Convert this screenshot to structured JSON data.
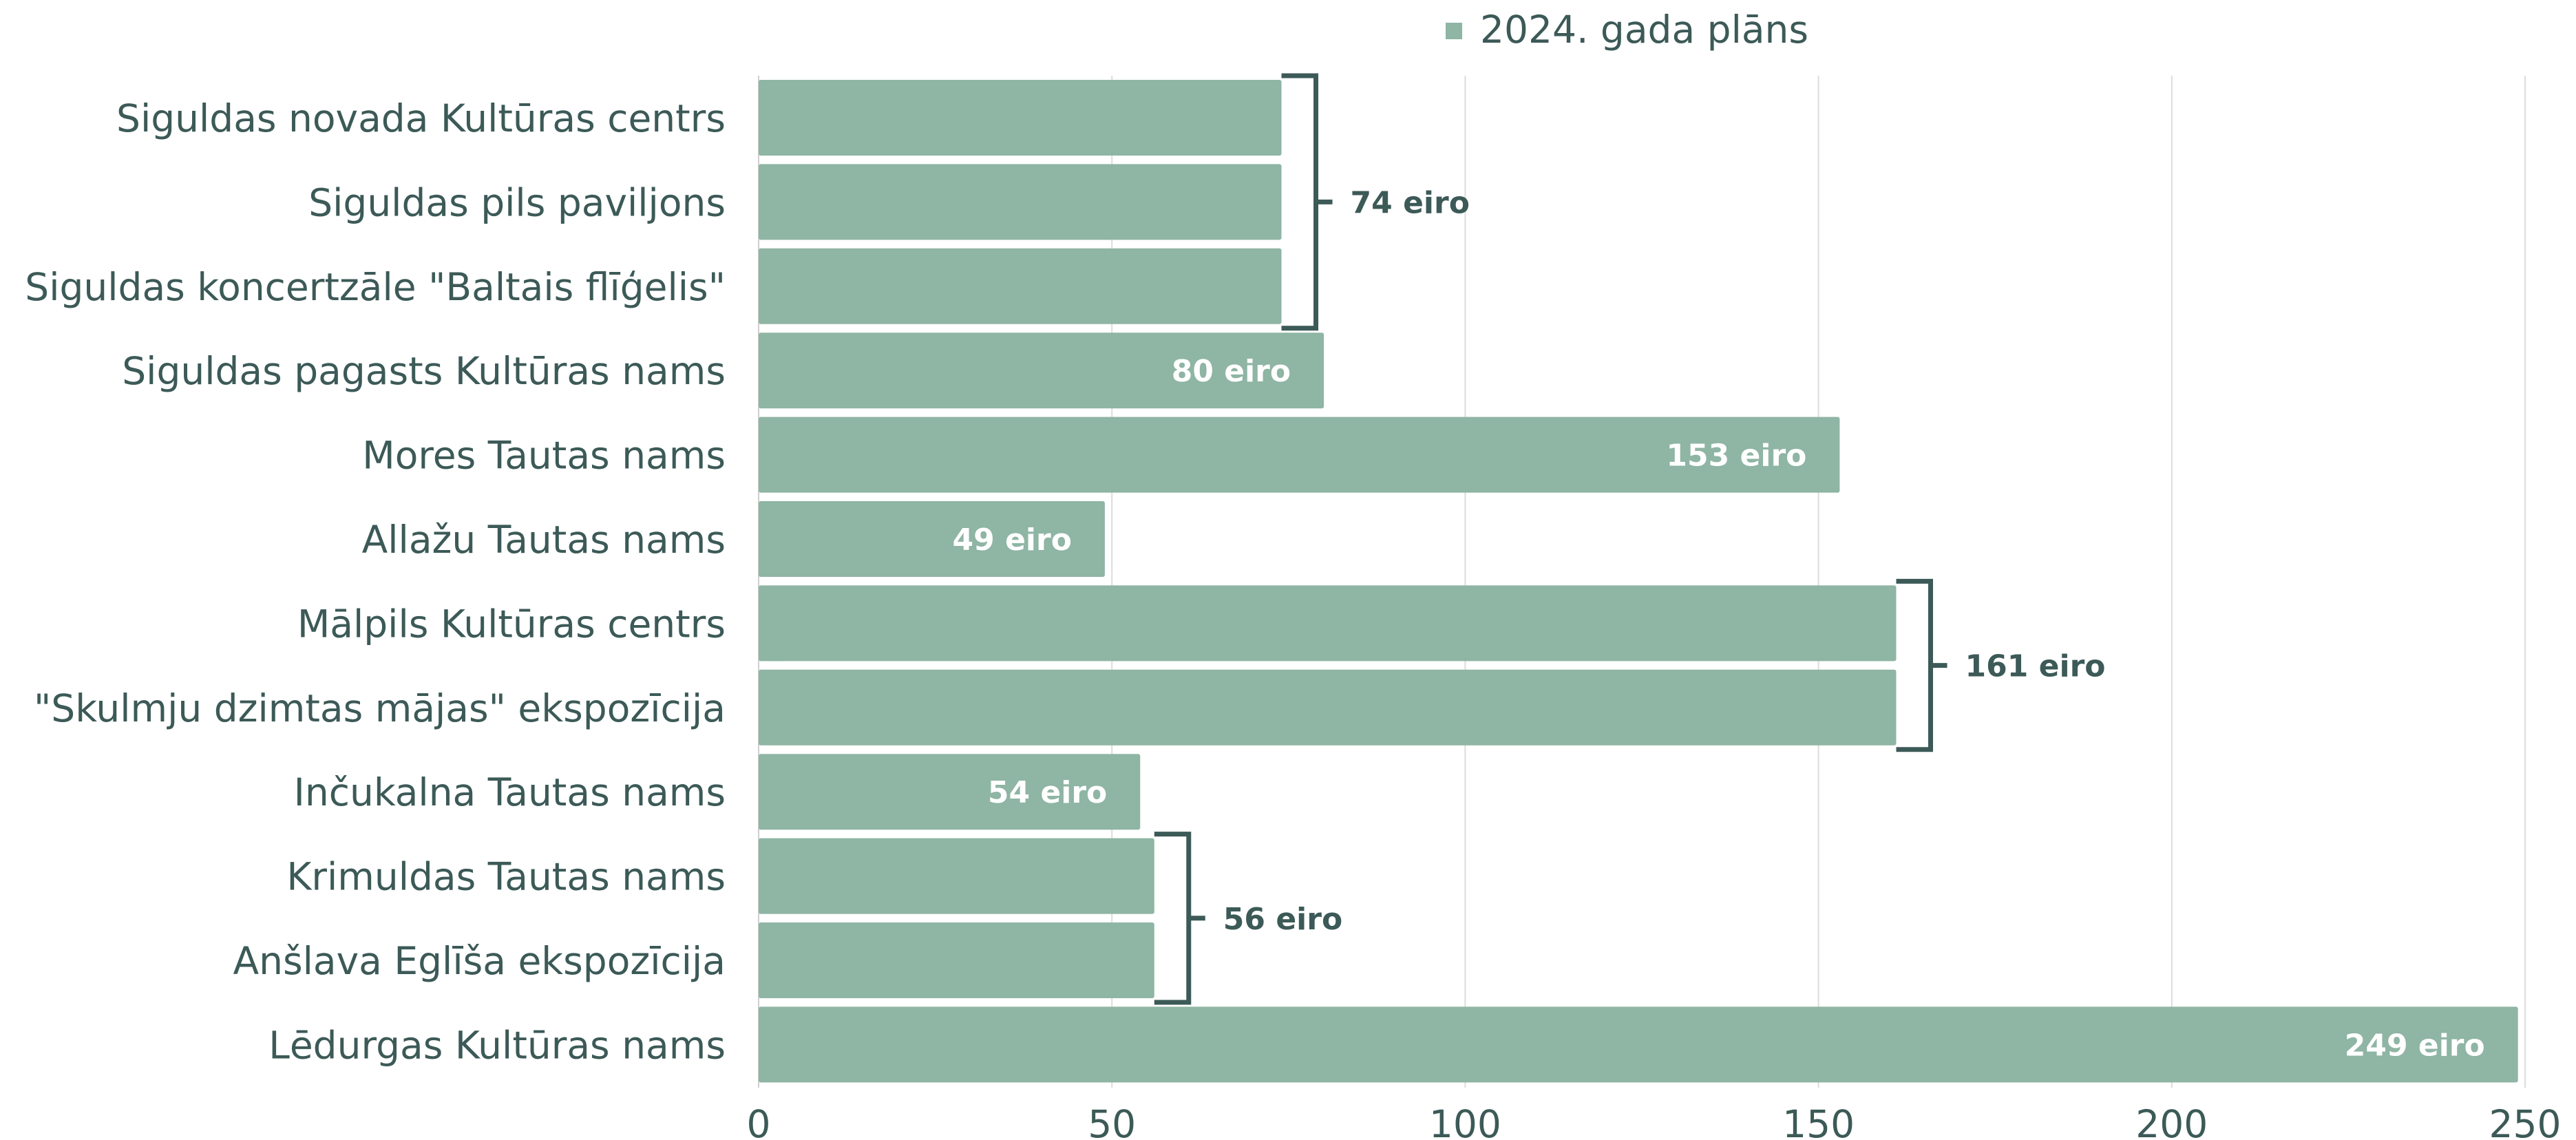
{
  "chart_data": {
    "type": "bar",
    "orientation": "horizontal",
    "legend": {
      "position": "top",
      "entries": [
        {
          "name": "2024. gada plāns",
          "color": "#8fb5a4"
        }
      ]
    },
    "colors": {
      "bar": "#8fb5a4",
      "text": "#3c5a57",
      "grid": "#dcdcdc"
    },
    "xlim": [
      0,
      250
    ],
    "xticks": [
      0,
      50,
      100,
      150,
      200,
      250
    ],
    "grid": true,
    "categories": [
      "Siguldas novada Kultūras centrs",
      "Siguldas pils paviljons",
      "Siguldas koncertzāle \"Baltais flīģelis\"",
      "Siguldas pagasts Kultūras nams",
      "Mores Tautas nams",
      "Allažu Tautas nams",
      "Mālpils Kultūras centrs",
      "\"Skulmju dzimtas mājas\" ekspozīcija",
      "Inčukalna Tautas nams",
      "Krimuldas Tautas nams",
      "Anšlava Eglīša ekspozīcija",
      "Lēdurgas Kultūras nams"
    ],
    "series": [
      {
        "name": "2024. gada plāns",
        "values": [
          74,
          74,
          74,
          80,
          153,
          49,
          161,
          161,
          54,
          56,
          56,
          249
        ]
      }
    ],
    "bar_labels": [
      {
        "index": 3,
        "text": "80 eiro"
      },
      {
        "index": 4,
        "text": "153 eiro"
      },
      {
        "index": 5,
        "text": "49 eiro"
      },
      {
        "index": 8,
        "text": "54 eiro"
      },
      {
        "index": 11,
        "text": "249 eiro"
      }
    ],
    "group_labels": [
      {
        "from": 0,
        "to": 2,
        "value": 74,
        "text": "74 eiro"
      },
      {
        "from": 6,
        "to": 7,
        "value": 161,
        "text": "161 eiro"
      },
      {
        "from": 9,
        "to": 10,
        "value": 56,
        "text": "56 eiro"
      }
    ]
  }
}
